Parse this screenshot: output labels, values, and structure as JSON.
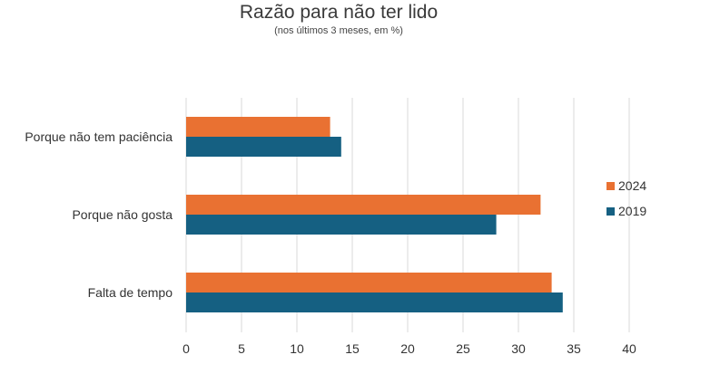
{
  "chart_data": {
    "type": "bar",
    "orientation": "horizontal",
    "title": "Razão para não ter lido",
    "subtitle": "(nos últimos 3 meses, em %)",
    "categories": [
      "Porque não tem paciência",
      "Porque não gosta",
      "Falta de tempo"
    ],
    "series": [
      {
        "name": "2024",
        "color": "#E97132",
        "values": [
          13,
          32,
          33
        ]
      },
      {
        "name": "2019",
        "color": "#156082",
        "values": [
          14,
          28,
          34
        ]
      }
    ],
    "xlim": [
      0,
      40
    ],
    "xticks": [
      0,
      5,
      10,
      15,
      20,
      25,
      30,
      35,
      40
    ],
    "grid": true,
    "legend_position": "right"
  }
}
